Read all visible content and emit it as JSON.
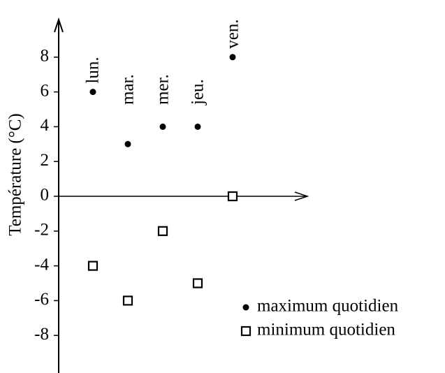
{
  "chart_data": {
    "type": "scatter",
    "ylabel": "Température (°C)",
    "categories": [
      "lun.",
      "mar.",
      "mer.",
      "jeu.",
      "ven."
    ],
    "series": [
      {
        "name": "maximum quotidien",
        "marker": "dot",
        "color": "#000000",
        "values": [
          6,
          3,
          4,
          4,
          8
        ]
      },
      {
        "name": "minimum quotidien",
        "marker": "square",
        "color": "#000000",
        "values": [
          -4,
          -6,
          -2,
          -5,
          0
        ]
      }
    ],
    "ylim": [
      -10,
      10
    ],
    "yticks": [
      -8,
      -6,
      -4,
      -2,
      0,
      2,
      4,
      6,
      8
    ]
  }
}
